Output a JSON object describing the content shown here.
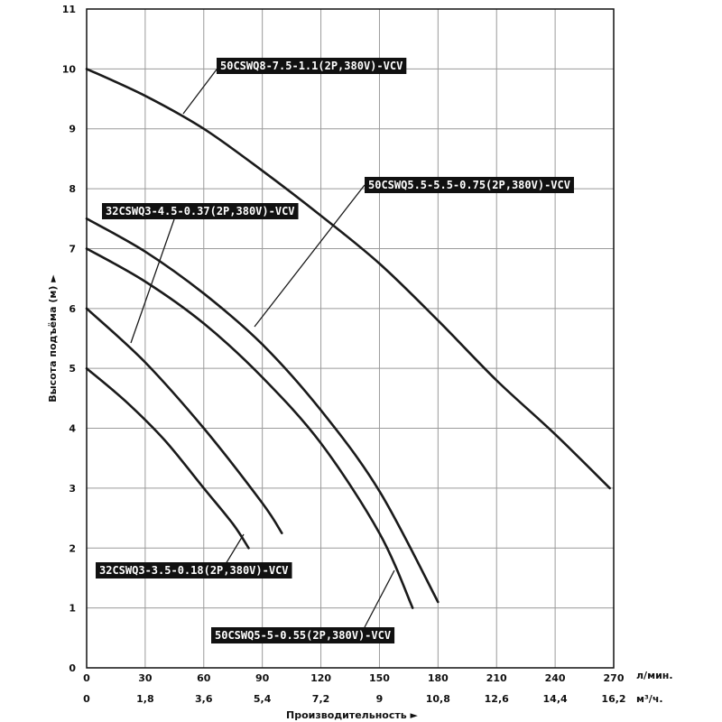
{
  "chart_data": {
    "type": "line",
    "xlabel": "Производительность ►",
    "ylabel": "Высота подъёма (м) ►",
    "x_unit_primary": "л/мин.",
    "x_unit_secondary": "м³/ч.",
    "xlim": [
      0,
      270
    ],
    "ylim": [
      0,
      11
    ],
    "x_ticks_primary": [
      "0",
      "30",
      "60",
      "90",
      "120",
      "150",
      "180",
      "210",
      "240",
      "270"
    ],
    "x_ticks_secondary": [
      "0",
      "1,8",
      "3,6",
      "5,4",
      "7,2",
      "9",
      "10,8",
      "12,6",
      "14,4",
      "16,2"
    ],
    "y_ticks": [
      "0",
      "1",
      "2",
      "3",
      "4",
      "5",
      "6",
      "7",
      "8",
      "9",
      "10",
      "11"
    ],
    "grid": true,
    "series": [
      {
        "name": "50CSWQ8-7.5-1.1(2P,380V)-VCV",
        "x": [
          0,
          30,
          60,
          90,
          120,
          150,
          180,
          210,
          240,
          268
        ],
        "y": [
          10.0,
          9.55,
          9.0,
          8.3,
          7.55,
          6.75,
          5.8,
          4.8,
          3.9,
          3.0
        ]
      },
      {
        "name": "50CSWQ5.5-5.5-0.75(2P,380V)-VCV",
        "x": [
          0,
          30,
          60,
          90,
          120,
          150,
          180
        ],
        "y": [
          7.5,
          6.95,
          6.25,
          5.4,
          4.3,
          2.95,
          1.1
        ]
      },
      {
        "name": "50CSWQ5-5-0.55(2P,380V)-VCV",
        "x": [
          0,
          30,
          60,
          90,
          120,
          150,
          167
        ],
        "y": [
          7.0,
          6.45,
          5.75,
          4.85,
          3.75,
          2.25,
          1.0
        ]
      },
      {
        "name": "32CSWQ3-4.5-0.37(2P,380V)-VCV",
        "x": [
          0,
          30,
          60,
          90,
          100
        ],
        "y": [
          6.0,
          5.1,
          4.0,
          2.75,
          2.25
        ]
      },
      {
        "name": "32CSWQ3-3.5-0.18(2P,380V)-VCV",
        "x": [
          0,
          20,
          40,
          60,
          75,
          83
        ],
        "y": [
          5.0,
          4.45,
          3.8,
          3.0,
          2.4,
          2.0
        ]
      }
    ]
  }
}
